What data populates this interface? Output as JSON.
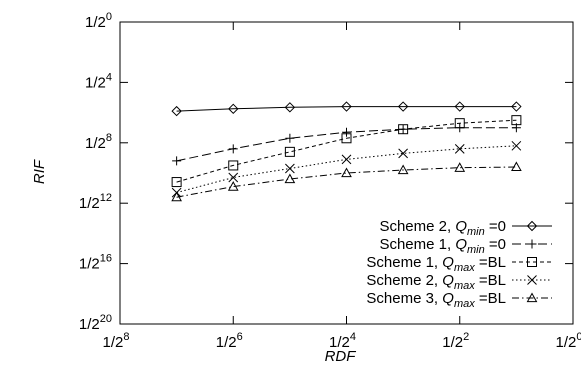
{
  "chart_data": {
    "type": "line",
    "title": "",
    "xlabel": "RDF",
    "ylabel": "RIF",
    "x_scale": "log2",
    "y_scale": "log2",
    "x_exponents": [
      -7,
      -6,
      -5,
      -4,
      -3,
      -2,
      -1
    ],
    "xlim_exponent": [
      -8,
      0
    ],
    "ylim_exponent": [
      -20,
      0
    ],
    "x_tick_exponents": [
      -8,
      -6,
      -4,
      -2,
      0
    ],
    "y_tick_exponents": [
      0,
      -4,
      -8,
      -12,
      -16,
      -20
    ],
    "x_tick_labels": [
      {
        "base": "1/2",
        "exp": "8"
      },
      {
        "base": "1/2",
        "exp": "6"
      },
      {
        "base": "1/2",
        "exp": "4"
      },
      {
        "base": "1/2",
        "exp": "2"
      },
      {
        "base": "1/2",
        "exp": "0"
      }
    ],
    "y_tick_labels": [
      {
        "base": "1/2",
        "exp": "0"
      },
      {
        "base": "1/2",
        "exp": "4"
      },
      {
        "base": "1/2",
        "exp": "8"
      },
      {
        "base": "1/2",
        "exp": "12"
      },
      {
        "base": "1/2",
        "exp": "16"
      },
      {
        "base": "1/2",
        "exp": "20"
      }
    ],
    "legend_position": "bottom-right",
    "grid": false,
    "series": [
      {
        "label_parts": [
          "Scheme 2, ",
          "Q",
          "min",
          " =0"
        ],
        "marker": "diamond",
        "dash": "solid",
        "y_exponents": [
          -5.9,
          -5.75,
          -5.65,
          -5.6,
          -5.6,
          -5.6,
          -5.6
        ]
      },
      {
        "label_parts": [
          "Scheme 1, ",
          "Q",
          "min",
          " =0"
        ],
        "marker": "plus",
        "dash": "dashed",
        "y_exponents": [
          -9.2,
          -8.4,
          -7.7,
          -7.3,
          -7.1,
          -7.0,
          -7.0
        ]
      },
      {
        "label_parts": [
          "Scheme 1, ",
          "Q",
          "max",
          " =BL"
        ],
        "marker": "square",
        "dash": "short-dashed",
        "y_exponents": [
          -10.6,
          -9.5,
          -8.6,
          -7.7,
          -7.1,
          -6.7,
          -6.5
        ]
      },
      {
        "label_parts": [
          "Scheme 2, ",
          "Q",
          "max",
          " =BL"
        ],
        "marker": "cross",
        "dash": "dotted",
        "y_exponents": [
          -11.3,
          -10.3,
          -9.7,
          -9.1,
          -8.7,
          -8.4,
          -8.2
        ]
      },
      {
        "label_parts": [
          "Scheme 3, ",
          "Q",
          "max",
          " =BL"
        ],
        "marker": "triangle",
        "dash": "dash-dot",
        "y_exponents": [
          -11.6,
          -10.9,
          -10.4,
          -10.0,
          -9.8,
          -9.65,
          -9.6
        ]
      }
    ]
  }
}
